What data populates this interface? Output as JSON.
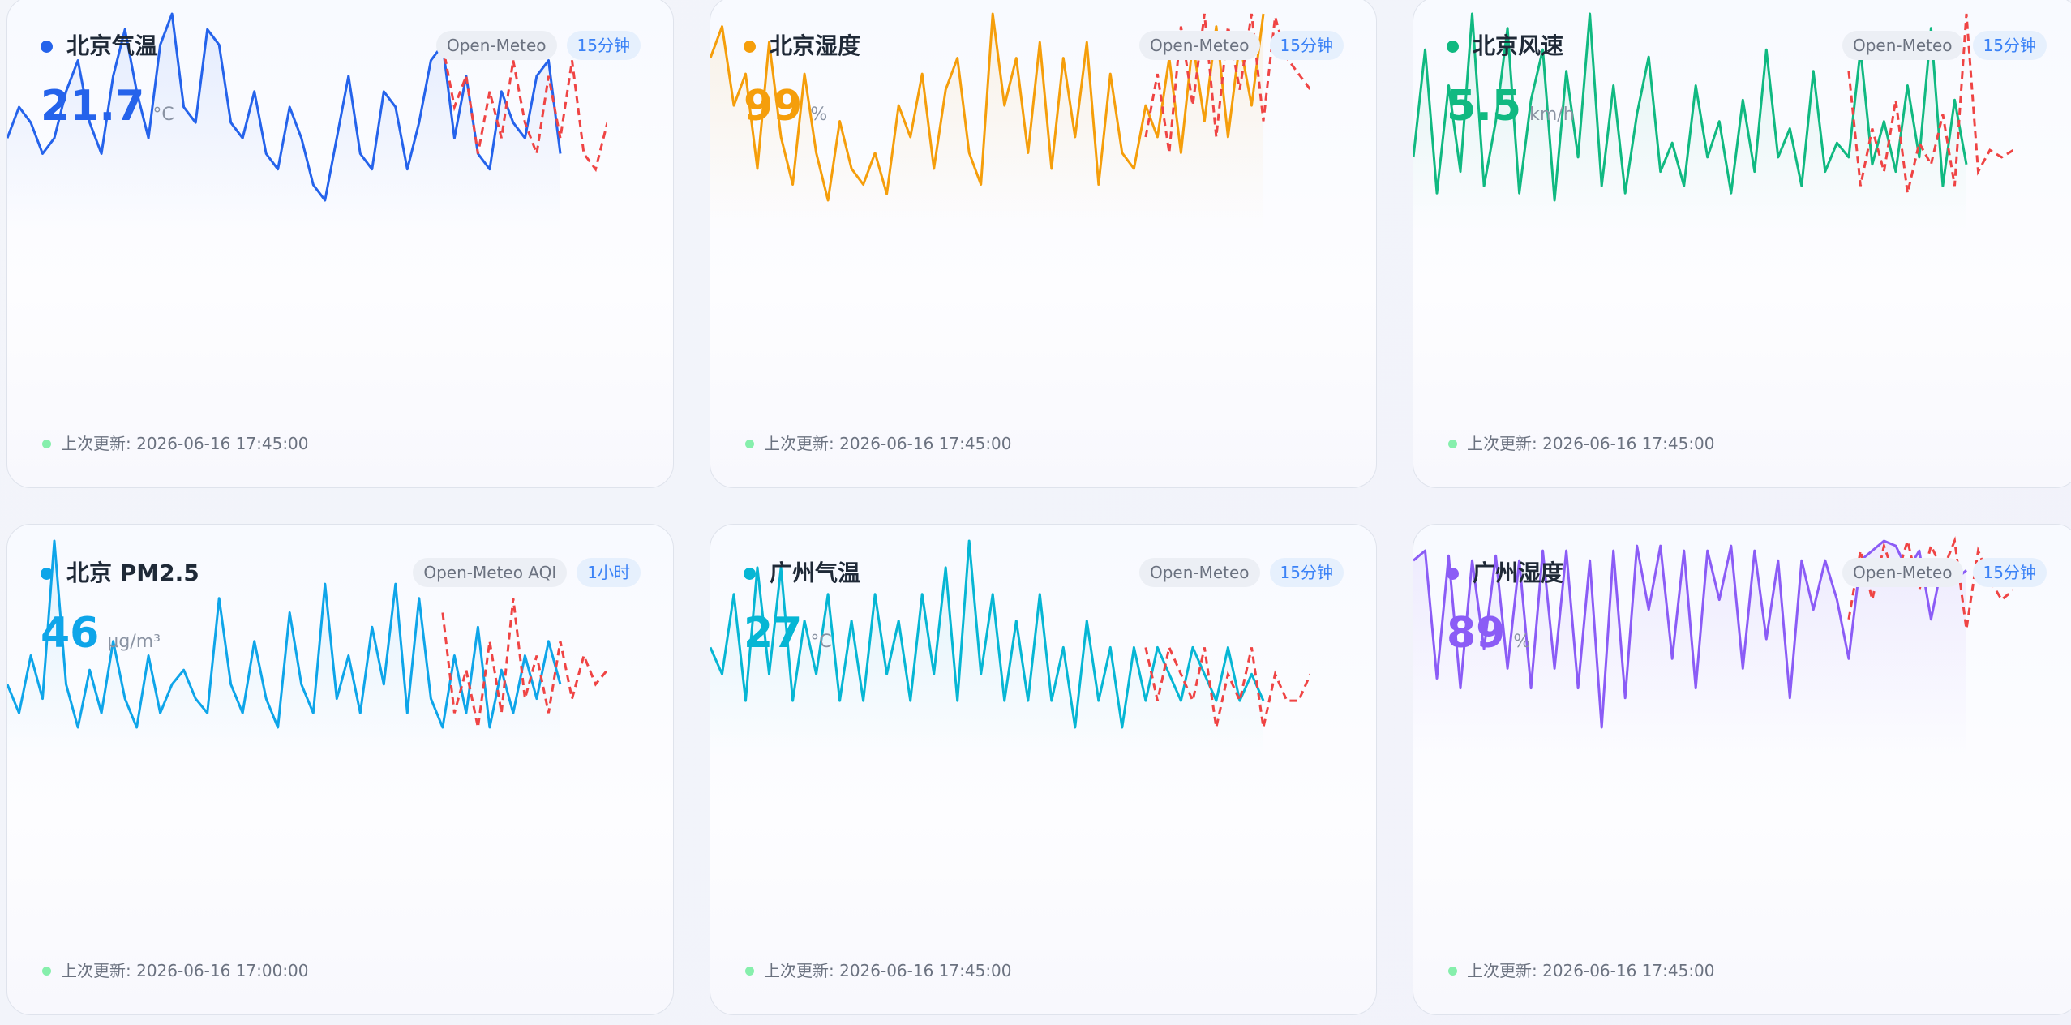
{
  "cards": [
    {
      "title": "北京气温",
      "color": "#2563eb",
      "value": 21.7,
      "unit": "°C",
      "source": "Open-Meteo",
      "interval": "15分钟",
      "updated": "上次更新: 2026-06-16 17:45:00",
      "history": [
        18,
        20,
        19,
        17,
        18,
        21,
        23,
        19,
        17,
        22,
        25,
        21,
        18,
        24,
        26,
        20,
        19,
        25,
        24,
        19,
        18,
        21,
        17,
        16,
        20,
        18,
        15,
        14,
        18,
        22,
        17,
        16,
        21,
        20,
        16,
        19,
        23,
        24,
        18,
        22,
        17,
        16,
        21,
        19,
        18,
        22,
        23,
        17,
        null,
        null,
        null,
        null
      ],
      "forecast": [
        null,
        null,
        null,
        null,
        null,
        null,
        null,
        null,
        null,
        null,
        null,
        null,
        null,
        null,
        null,
        null,
        null,
        null,
        null,
        null,
        null,
        null,
        null,
        null,
        null,
        null,
        null,
        null,
        null,
        null,
        null,
        null,
        null,
        null,
        null,
        null,
        null,
        24,
        20,
        22,
        17,
        21,
        18,
        23,
        19,
        17,
        22,
        18,
        23,
        17,
        16,
        19
      ]
    },
    {
      "title": "北京湿度",
      "color": "#f59e0b",
      "value": 99,
      "unit": "%",
      "source": "Open-Meteo",
      "interval": "15分钟",
      "updated": "上次更新: 2026-06-16 17:45:00",
      "history": [
        85,
        95,
        70,
        80,
        50,
        90,
        60,
        45,
        80,
        55,
        40,
        65,
        50,
        45,
        55,
        42,
        70,
        60,
        80,
        50,
        75,
        85,
        55,
        45,
        99,
        70,
        85,
        55,
        90,
        50,
        85,
        60,
        90,
        45,
        80,
        55,
        50,
        70,
        60,
        85,
        55,
        90,
        65,
        95,
        60,
        90,
        70,
        99,
        null,
        null,
        null,
        null
      ],
      "forecast": [
        null,
        null,
        null,
        null,
        null,
        null,
        null,
        null,
        null,
        null,
        null,
        null,
        null,
        null,
        null,
        null,
        null,
        null,
        null,
        null,
        null,
        null,
        null,
        null,
        null,
        null,
        null,
        null,
        null,
        null,
        null,
        null,
        null,
        null,
        null,
        null,
        null,
        60,
        80,
        55,
        95,
        70,
        99,
        60,
        95,
        75,
        99,
        65,
        98,
        85,
        80,
        75
      ]
    },
    {
      "title": "北京风速",
      "color": "#10b981",
      "value": 5.5,
      "unit": "km/h",
      "source": "Open-Meteo",
      "interval": "15分钟",
      "updated": "上次更新: 2026-06-16 17:45:00",
      "history": [
        10,
        25,
        5,
        20,
        8,
        30,
        6,
        15,
        28,
        5,
        18,
        25,
        4,
        22,
        10,
        30,
        6,
        20,
        5,
        16,
        24,
        8,
        12,
        6,
        20,
        10,
        15,
        5,
        18,
        8,
        25,
        10,
        14,
        6,
        22,
        8,
        12,
        10,
        25,
        9,
        15,
        8,
        20,
        10,
        28,
        6,
        18,
        9,
        null,
        null,
        null,
        null
      ],
      "forecast": [
        null,
        null,
        null,
        null,
        null,
        null,
        null,
        null,
        null,
        null,
        null,
        null,
        null,
        null,
        null,
        null,
        null,
        null,
        null,
        null,
        null,
        null,
        null,
        null,
        null,
        null,
        null,
        null,
        null,
        null,
        null,
        null,
        null,
        null,
        null,
        null,
        null,
        22,
        6,
        14,
        8,
        18,
        5,
        12,
        9,
        16,
        6,
        30,
        8,
        11,
        10,
        11
      ]
    },
    {
      "title": "北京 PM2.5",
      "color": "#0ea5e9",
      "value": 46,
      "unit": "µg/m³",
      "source": "Open-Meteo AQI",
      "interval": "1小时",
      "updated": "上次更新: 2026-06-16 17:00:00",
      "history": [
        30,
        20,
        40,
        25,
        80,
        30,
        15,
        35,
        20,
        45,
        25,
        15,
        40,
        20,
        30,
        35,
        25,
        20,
        60,
        30,
        20,
        45,
        25,
        15,
        55,
        30,
        20,
        65,
        25,
        40,
        20,
        50,
        30,
        65,
        20,
        60,
        25,
        15,
        40,
        20,
        50,
        15,
        35,
        20,
        40,
        25,
        45,
        30,
        null,
        null,
        null,
        null
      ],
      "forecast": [
        null,
        null,
        null,
        null,
        null,
        null,
        null,
        null,
        null,
        null,
        null,
        null,
        null,
        null,
        null,
        null,
        null,
        null,
        null,
        null,
        null,
        null,
        null,
        null,
        null,
        null,
        null,
        null,
        null,
        null,
        null,
        null,
        null,
        null,
        null,
        null,
        null,
        55,
        20,
        35,
        15,
        45,
        20,
        60,
        25,
        40,
        20,
        45,
        25,
        40,
        30,
        35
      ]
    },
    {
      "title": "广州气温",
      "color": "#06b6d4",
      "value": 27,
      "unit": "°C",
      "source": "Open-Meteo",
      "interval": "15分钟",
      "updated": "上次更新: 2026-06-16 17:45:00",
      "history": [
        28,
        27,
        30,
        26,
        31,
        27,
        31,
        26,
        29,
        27,
        30,
        26,
        29,
        26,
        30,
        27,
        29,
        26,
        30,
        27,
        31,
        26,
        32,
        27,
        30,
        26,
        29,
        26,
        30,
        26,
        28,
        25,
        29,
        26,
        28,
        25,
        28,
        26,
        28,
        27,
        26,
        28,
        27,
        26,
        28,
        26,
        27,
        26,
        null,
        null,
        null,
        null
      ],
      "forecast": [
        null,
        null,
        null,
        null,
        null,
        null,
        null,
        null,
        null,
        null,
        null,
        null,
        null,
        null,
        null,
        null,
        null,
        null,
        null,
        null,
        null,
        null,
        null,
        null,
        null,
        null,
        null,
        null,
        null,
        null,
        null,
        null,
        null,
        null,
        null,
        null,
        null,
        28,
        26,
        28,
        27,
        26,
        28,
        25,
        27,
        26,
        28,
        25,
        27,
        26,
        26,
        27
      ]
    },
    {
      "title": "广州湿度",
      "color": "#8b5cf6",
      "value": 89,
      "unit": "%",
      "source": "Open-Meteo",
      "interval": "15分钟",
      "updated": "上次更新: 2026-06-16 17:45:00",
      "history": [
        92,
        94,
        68,
        93,
        66,
        92,
        74,
        93,
        70,
        92,
        66,
        94,
        70,
        94,
        66,
        92,
        58,
        94,
        64,
        95,
        82,
        95,
        72,
        94,
        66,
        94,
        84,
        95,
        70,
        94,
        76,
        92,
        64,
        92,
        82,
        92,
        84,
        72,
        92,
        94,
        96,
        95,
        90,
        94,
        80,
        92,
        88,
        90,
        null,
        null,
        null,
        null
      ],
      "forecast": [
        null,
        null,
        null,
        null,
        null,
        null,
        null,
        null,
        null,
        null,
        null,
        null,
        null,
        null,
        null,
        null,
        null,
        null,
        null,
        null,
        null,
        null,
        null,
        null,
        null,
        null,
        null,
        null,
        null,
        null,
        null,
        null,
        null,
        null,
        null,
        null,
        null,
        80,
        94,
        84,
        95,
        88,
        96,
        86,
        95,
        90,
        96,
        78,
        94,
        88,
        84,
        86
      ]
    }
  ]
}
